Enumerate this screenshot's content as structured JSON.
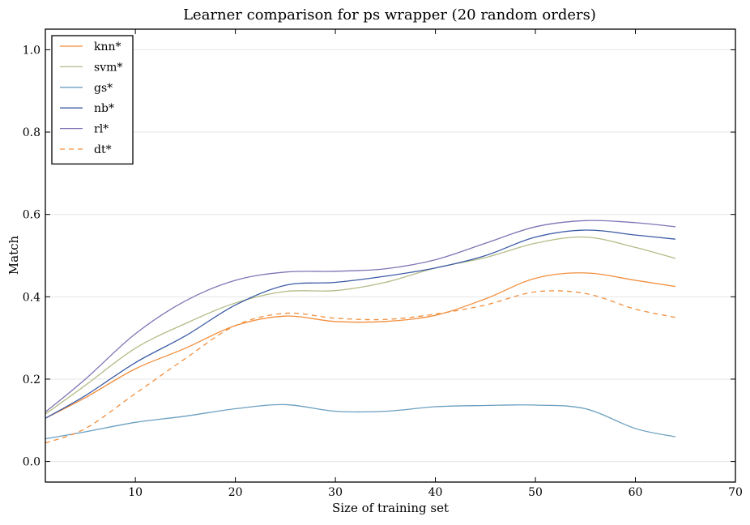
{
  "chart_data": {
    "type": "line",
    "title": "Learner comparison for ps wrapper (20 random orders)",
    "xlabel": "Size of training set",
    "ylabel": "Match",
    "xlim": [
      1,
      70
    ],
    "ylim": [
      -0.05,
      1.05
    ],
    "xticks": [
      10,
      20,
      30,
      40,
      50,
      60,
      70
    ],
    "yticks": [
      0.0,
      0.2,
      0.4,
      0.6,
      0.8,
      1.0
    ],
    "grid": "horizontal",
    "legend": "top-left",
    "series": [
      {
        "name": "knn*",
        "color": "#F28E3C",
        "dash": "solid",
        "x": [
          1,
          5,
          10,
          15,
          20,
          25,
          30,
          35,
          40,
          45,
          50,
          55,
          60,
          64
        ],
        "y": [
          0.105,
          0.155,
          0.225,
          0.275,
          0.33,
          0.353,
          0.34,
          0.34,
          0.355,
          0.395,
          0.445,
          0.458,
          0.44,
          0.425
        ]
      },
      {
        "name": "svm*",
        "color": "#B2BC86",
        "dash": "solid",
        "x": [
          1,
          5,
          10,
          15,
          20,
          25,
          30,
          35,
          40,
          45,
          50,
          55,
          60,
          64
        ],
        "y": [
          0.115,
          0.185,
          0.275,
          0.335,
          0.385,
          0.413,
          0.415,
          0.435,
          0.47,
          0.495,
          0.53,
          0.545,
          0.52,
          0.493
        ]
      },
      {
        "name": "gs*",
        "color": "#6B9FC0",
        "dash": "solid",
        "x": [
          1,
          5,
          10,
          15,
          20,
          25,
          30,
          35,
          40,
          45,
          50,
          55,
          60,
          64
        ],
        "y": [
          0.055,
          0.072,
          0.095,
          0.11,
          0.128,
          0.138,
          0.122,
          0.122,
          0.133,
          0.136,
          0.137,
          0.128,
          0.08,
          0.06
        ]
      },
      {
        "name": "nb*",
        "color": "#3C5BA5",
        "dash": "solid",
        "x": [
          1,
          5,
          10,
          15,
          20,
          25,
          30,
          35,
          40,
          45,
          50,
          55,
          60,
          64
        ],
        "y": [
          0.105,
          0.16,
          0.24,
          0.305,
          0.38,
          0.428,
          0.435,
          0.45,
          0.47,
          0.5,
          0.545,
          0.562,
          0.55,
          0.54
        ]
      },
      {
        "name": "rl*",
        "color": "#8173B5",
        "dash": "solid",
        "x": [
          1,
          5,
          10,
          15,
          20,
          25,
          30,
          35,
          40,
          45,
          50,
          55,
          60,
          64
        ],
        "y": [
          0.12,
          0.2,
          0.31,
          0.39,
          0.44,
          0.46,
          0.462,
          0.468,
          0.49,
          0.53,
          0.57,
          0.585,
          0.58,
          0.57
        ]
      },
      {
        "name": "dt*",
        "color": "#F28E3C",
        "dash": "dashed",
        "x": [
          1,
          5,
          10,
          15,
          20,
          25,
          30,
          35,
          40,
          45,
          50,
          55,
          60,
          64
        ],
        "y": [
          0.045,
          0.08,
          0.165,
          0.25,
          0.33,
          0.36,
          0.348,
          0.345,
          0.358,
          0.38,
          0.412,
          0.408,
          0.37,
          0.35
        ]
      }
    ]
  }
}
